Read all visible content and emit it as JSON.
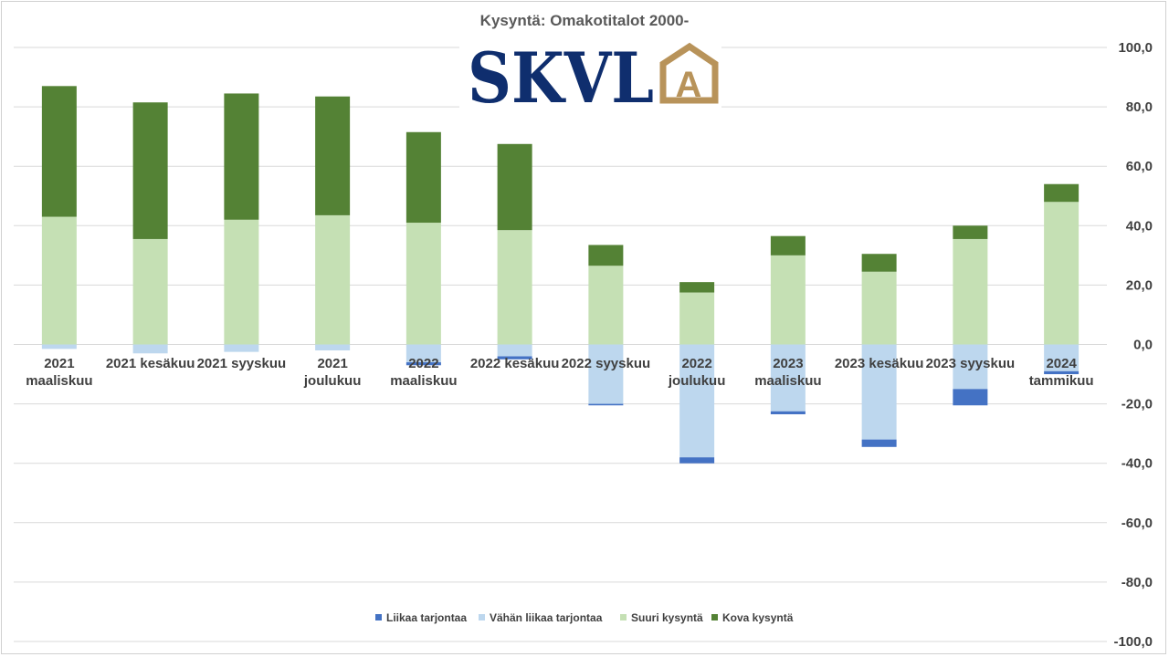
{
  "chart_data": {
    "type": "bar",
    "stacked": true,
    "title": "Kysyntä: Omakotitalot 2000-",
    "categories": [
      [
        "2021",
        "maaliskuu"
      ],
      [
        "2021 kesäkuu"
      ],
      [
        "2021 syyskuu"
      ],
      [
        "2021",
        "joulukuu"
      ],
      [
        "2022",
        "maaliskuu"
      ],
      [
        "2022 kesäkuu"
      ],
      [
        "2022 syyskuu"
      ],
      [
        "2022",
        "joulukuu"
      ],
      [
        "2023",
        "maaliskuu"
      ],
      [
        "2023 kesäkuu"
      ],
      [
        "2023 syyskuu"
      ],
      [
        "2024",
        "tammikuu"
      ]
    ],
    "series": [
      {
        "name": "Liikaa tarjontaa",
        "color": "#4472C4",
        "values": [
          0,
          0,
          0,
          0,
          -1.0,
          -1.0,
          -0.5,
          -2.0,
          -1.0,
          -2.5,
          -5.5,
          -1.0
        ]
      },
      {
        "name": "Vähän liikaa tarjontaa",
        "color": "#BDD7EE",
        "values": [
          -1.5,
          -3.0,
          -2.5,
          -2.0,
          -6.0,
          -4.0,
          -20.0,
          -38.0,
          -22.5,
          -32.0,
          -15.0,
          -9.0
        ]
      },
      {
        "name": "Suuri kysyntä",
        "color": "#C5E0B4",
        "values": [
          43.0,
          35.5,
          42.0,
          43.5,
          41.0,
          38.5,
          26.5,
          17.5,
          30.0,
          24.5,
          35.5,
          48.0
        ]
      },
      {
        "name": "Kova kysyntä",
        "color": "#548235",
        "values": [
          44.0,
          46.0,
          42.5,
          40.0,
          30.5,
          29.0,
          7.0,
          3.5,
          6.5,
          6.0,
          4.5,
          6.0
        ]
      }
    ],
    "ylim": [
      -100,
      100
    ],
    "yticks": [
      100,
      80,
      60,
      40,
      20,
      0,
      -20,
      -40,
      -60,
      -80,
      -100
    ],
    "ytick_labels": [
      "100,0",
      "80,0",
      "60,0",
      "40,0",
      "20,0",
      "0,0",
      "-20,0",
      "-40,0",
      "-60,0",
      "-80,0",
      "-100,0"
    ],
    "legend_position": "bottom",
    "grid": true,
    "gridline_color": "#d9d9d9"
  },
  "logo": {
    "text": "SKVL",
    "badge_letter": "A",
    "text_color": "#0F2E6E",
    "badge_color": "#B8935A"
  }
}
